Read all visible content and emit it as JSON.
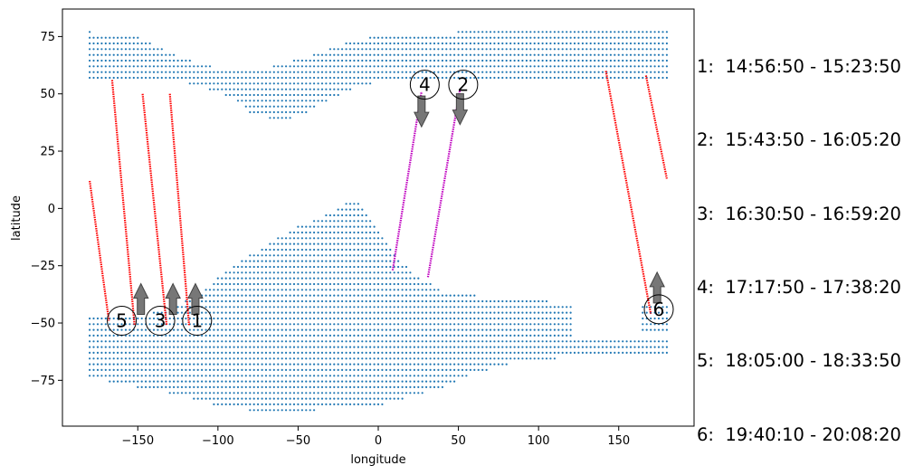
{
  "chart_data": {
    "type": "scatter",
    "xlabel": "longitude",
    "ylabel": "latitude",
    "xlim": [
      -197,
      197
    ],
    "ylim": [
      -95,
      87
    ],
    "xticks": [
      -150,
      -100,
      -50,
      0,
      50,
      100,
      150
    ],
    "yticks": [
      -75,
      -50,
      -25,
      0,
      25,
      50,
      75
    ],
    "grid": false,
    "land_color": "#1f77b4",
    "track_colors": {
      "descending": "#ff0000",
      "ascending": "#bf00bf"
    },
    "tracks": [
      {
        "label": "1",
        "color": "#ff0000",
        "start": [
          -130,
          50
        ],
        "end": [
          -118,
          -51
        ],
        "direction": "north",
        "marker_lon": -113,
        "marker_lat": -49
      },
      {
        "label": "2",
        "color": "#bf00bf",
        "start": [
          31,
          -30
        ],
        "end": [
          51,
          52
        ],
        "direction": "south",
        "marker_lon": 53,
        "marker_lat": 54
      },
      {
        "label": "3",
        "color": "#ff0000",
        "start": [
          -147,
          50
        ],
        "end": [
          -132,
          -51
        ],
        "direction": "north",
        "marker_lon": -136,
        "marker_lat": -49
      },
      {
        "label": "4",
        "color": "#bf00bf",
        "start": [
          9,
          -27
        ],
        "end": [
          27,
          51
        ],
        "direction": "south",
        "marker_lon": 29,
        "marker_lat": 54
      },
      {
        "label": "5",
        "color": "#ff0000",
        "start": [
          -166,
          56
        ],
        "end": [
          -152,
          -51
        ],
        "direction": "north",
        "marker_lon": -160,
        "marker_lat": -49
      },
      {
        "label": "6",
        "color": "#ff0000",
        "start": [
          142,
          60
        ],
        "end": [
          170,
          -46
        ],
        "direction": "north",
        "marker_lon": 175,
        "marker_lat": -44
      },
      {
        "label": "",
        "color": "#ff0000",
        "start": [
          -180,
          12
        ],
        "end": [
          -168,
          -49
        ],
        "direction": "none"
      },
      {
        "label": "",
        "color": "#ff0000",
        "start": [
          167,
          58
        ],
        "end": [
          180,
          13
        ],
        "direction": "none"
      }
    ]
  },
  "legend": [
    {
      "text": "1:  14:56:50 - 15:23:50"
    },
    {
      "text": "2:  15:43:50 - 16:05:20"
    },
    {
      "text": "3:  16:30:50 - 16:59:20"
    },
    {
      "text": "4:  17:17:50 - 17:38:20"
    },
    {
      "text": "5:  18:05:00 - 18:33:50"
    },
    {
      "text": "6:  19:40:10 - 20:08:20"
    }
  ]
}
